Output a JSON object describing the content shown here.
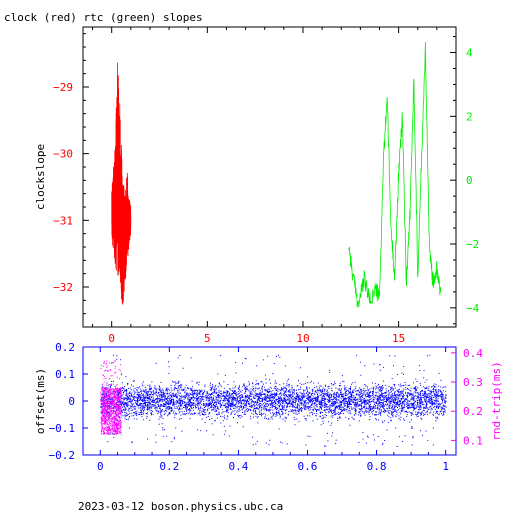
{
  "title": "clock (red) rtc (green) slopes",
  "footer": "2023-03-12  boson.physics.ubc.ca",
  "colors": {
    "red": "#ff0000",
    "green": "#00ee00",
    "blue": "#0000ff",
    "magenta": "#ff00ff",
    "black": "#000000"
  },
  "chart_data": [
    {
      "type": "line",
      "title": "clock (red) rtc (green) slopes",
      "ylabel": "clockslope",
      "xlim": [
        -1.5,
        18.0
      ],
      "ylim": [
        -32.6,
        -28.1
      ],
      "y2lim": [
        -4.6,
        4.8
      ],
      "x_ticks": [
        0,
        5,
        10,
        15
      ],
      "y_ticks": [
        -29,
        -30,
        -31,
        -32
      ],
      "y2_ticks": [
        4,
        2,
        0,
        -2,
        -4
      ],
      "series": [
        {
          "name": "clock",
          "color": "#ff0000",
          "axis": "left",
          "x_range": [
            0,
            1.0
          ],
          "envelope": [
            [
              0.0,
              -31.3,
              -30.5
            ],
            [
              0.15,
              -31.6,
              -30.0
            ],
            [
              0.3,
              -32.0,
              -28.6
            ],
            [
              0.4,
              -31.8,
              -28.9
            ],
            [
              0.5,
              -32.2,
              -29.8
            ],
            [
              0.6,
              -32.3,
              -30.4
            ],
            [
              0.7,
              -31.9,
              -30.6
            ],
            [
              0.8,
              -31.8,
              -30.2
            ],
            [
              0.9,
              -31.4,
              -30.6
            ],
            [
              1.0,
              -31.2,
              -30.8
            ]
          ]
        },
        {
          "name": "rtc",
          "color": "#00ee00",
          "axis": "right",
          "x": [
            12.4,
            12.6,
            12.9,
            13.2,
            13.5,
            13.8,
            14.0,
            14.2,
            14.4,
            14.6,
            14.8,
            15.0,
            15.2,
            15.4,
            15.6,
            15.8,
            16.0,
            16.2,
            16.4,
            16.6,
            16.8,
            17.0,
            17.2
          ],
          "y": [
            -2.0,
            -3.0,
            -3.9,
            -3.1,
            -3.8,
            -3.4,
            -3.7,
            0.5,
            2.7,
            -1.5,
            -3.0,
            0.2,
            2.0,
            -3.2,
            -1.0,
            3.2,
            -3.0,
            0.7,
            4.2,
            -2.0,
            -3.2,
            -2.7,
            -3.5
          ]
        }
      ]
    },
    {
      "type": "scatter",
      "ylabel": "offset(ms)",
      "y2label": "rnd-trip(ms)",
      "xlim": [
        -0.05,
        1.03
      ],
      "ylim": [
        -0.2,
        0.2
      ],
      "y2lim": [
        0.05,
        0.42
      ],
      "x_ticks": [
        0,
        0.2,
        0.4,
        0.6,
        0.8,
        1
      ],
      "y_ticks": [
        0.2,
        0.1,
        0,
        -0.1,
        -0.2
      ],
      "y2_ticks": [
        0.4,
        0.3,
        0.2,
        0.1
      ],
      "series": [
        {
          "name": "offset",
          "color": "#0000ff",
          "axis": "left",
          "x_range": [
            0,
            1
          ],
          "center": 0.0,
          "spread": 0.03
        },
        {
          "name": "rnd-trip",
          "color": "#ff00ff",
          "axis": "right",
          "x_range": [
            0,
            0.06
          ],
          "y_range": [
            0.12,
            0.28
          ]
        }
      ]
    }
  ]
}
